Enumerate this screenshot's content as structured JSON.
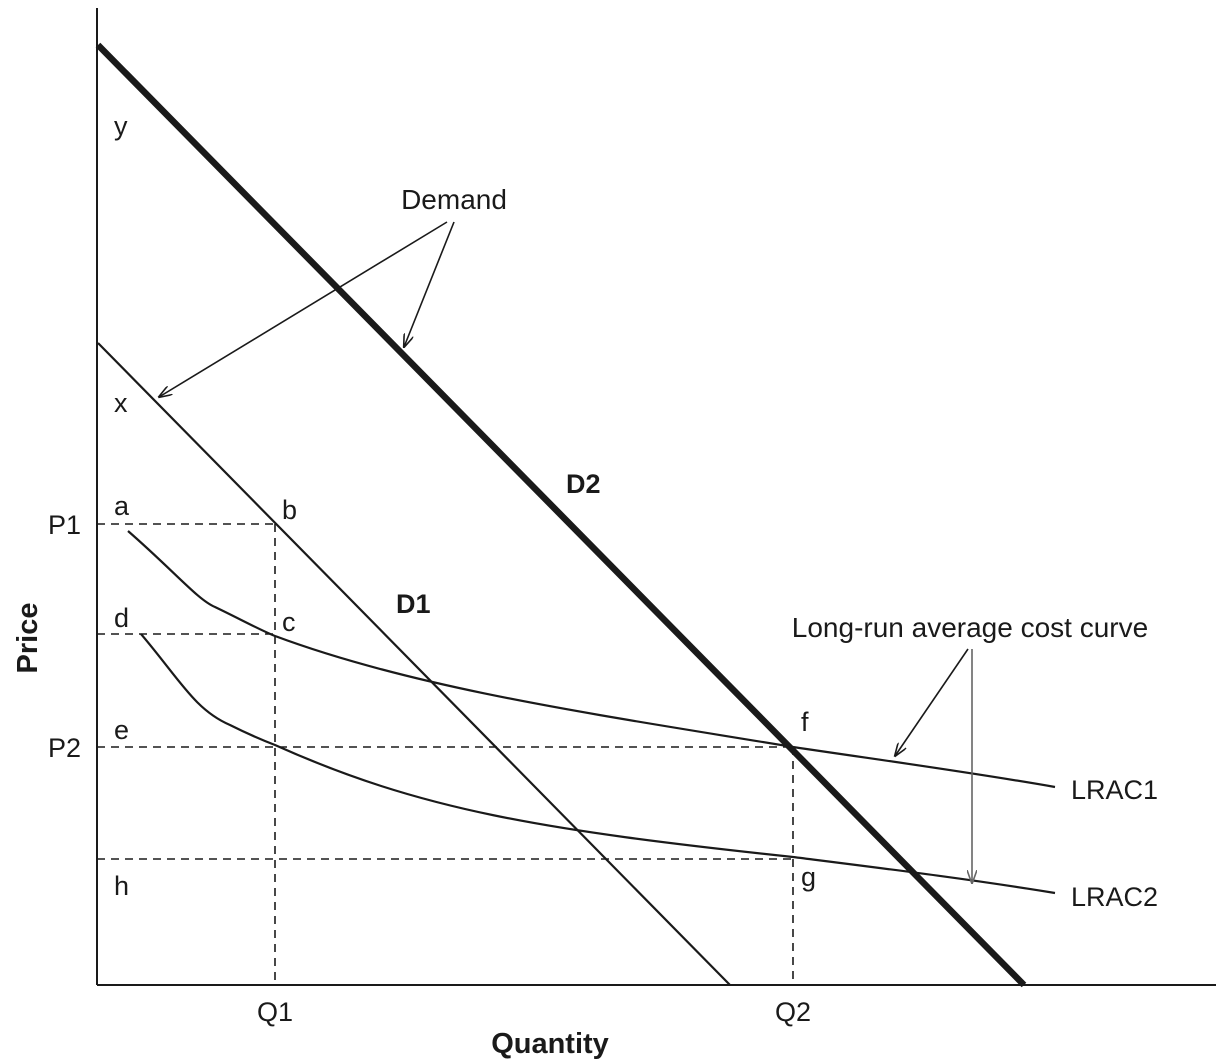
{
  "axes": {
    "x_title": "Quantity",
    "y_title": "Price"
  },
  "ticks": {
    "p1": "P1",
    "p2": "P2",
    "q1": "Q1",
    "q2": "Q2"
  },
  "points": {
    "y": "y",
    "x": "x",
    "a": "a",
    "b": "b",
    "c": "c",
    "d": "d",
    "e": "e",
    "f": "f",
    "g": "g",
    "h": "h"
  },
  "curves": {
    "d1": "D1",
    "d2": "D2",
    "lrac1": "LRAC1",
    "lrac2": "LRAC2"
  },
  "annotations": {
    "demand": "Demand",
    "lrac": "Long-run average cost curve"
  }
}
